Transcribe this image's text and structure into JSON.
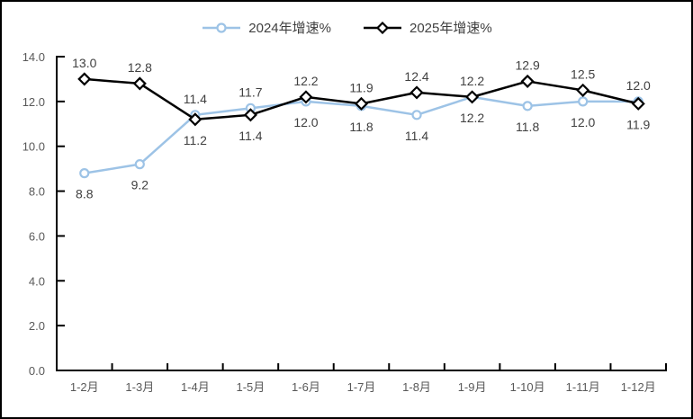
{
  "legend": {
    "items": [
      {
        "label": "2024年增速%",
        "color": "#9DC3E6",
        "marker": "circle"
      },
      {
        "label": "2025年增速%",
        "color": "#000000",
        "marker": "diamond"
      }
    ]
  },
  "chart_data": {
    "type": "line",
    "categories": [
      "1-2月",
      "1-3月",
      "1-4月",
      "1-5月",
      "1-6月",
      "1-7月",
      "1-8月",
      "1-9月",
      "1-10月",
      "1-11月",
      "1-12月"
    ],
    "series": [
      {
        "name": "2024年增速%",
        "color": "#9DC3E6",
        "marker": "circle",
        "values": [
          8.8,
          9.2,
          11.4,
          11.7,
          12.0,
          11.8,
          11.4,
          12.2,
          11.8,
          12.0,
          12.0
        ]
      },
      {
        "name": "2025年增速%",
        "color": "#000000",
        "marker": "diamond",
        "values": [
          13.0,
          12.8,
          11.2,
          11.4,
          12.2,
          11.9,
          12.4,
          12.2,
          12.9,
          12.5,
          11.9
        ]
      }
    ],
    "title": "",
    "xlabel": "",
    "ylabel": "",
    "ylim": [
      0,
      14
    ],
    "yticks": [
      0,
      2,
      4,
      6,
      8,
      10,
      12,
      14
    ],
    "ytick_labels": [
      "0.0",
      "2.0",
      "4.0",
      "6.0",
      "8.0",
      "10.0",
      "12.0",
      "14.0"
    ],
    "data_labels": true,
    "data_label_decimals": 1,
    "grid": false,
    "legend_position": "top",
    "axis_color": "#000000",
    "data_label_color": "#404040",
    "tick_label_color": "#595959",
    "marker_fill": "#ffffff"
  }
}
